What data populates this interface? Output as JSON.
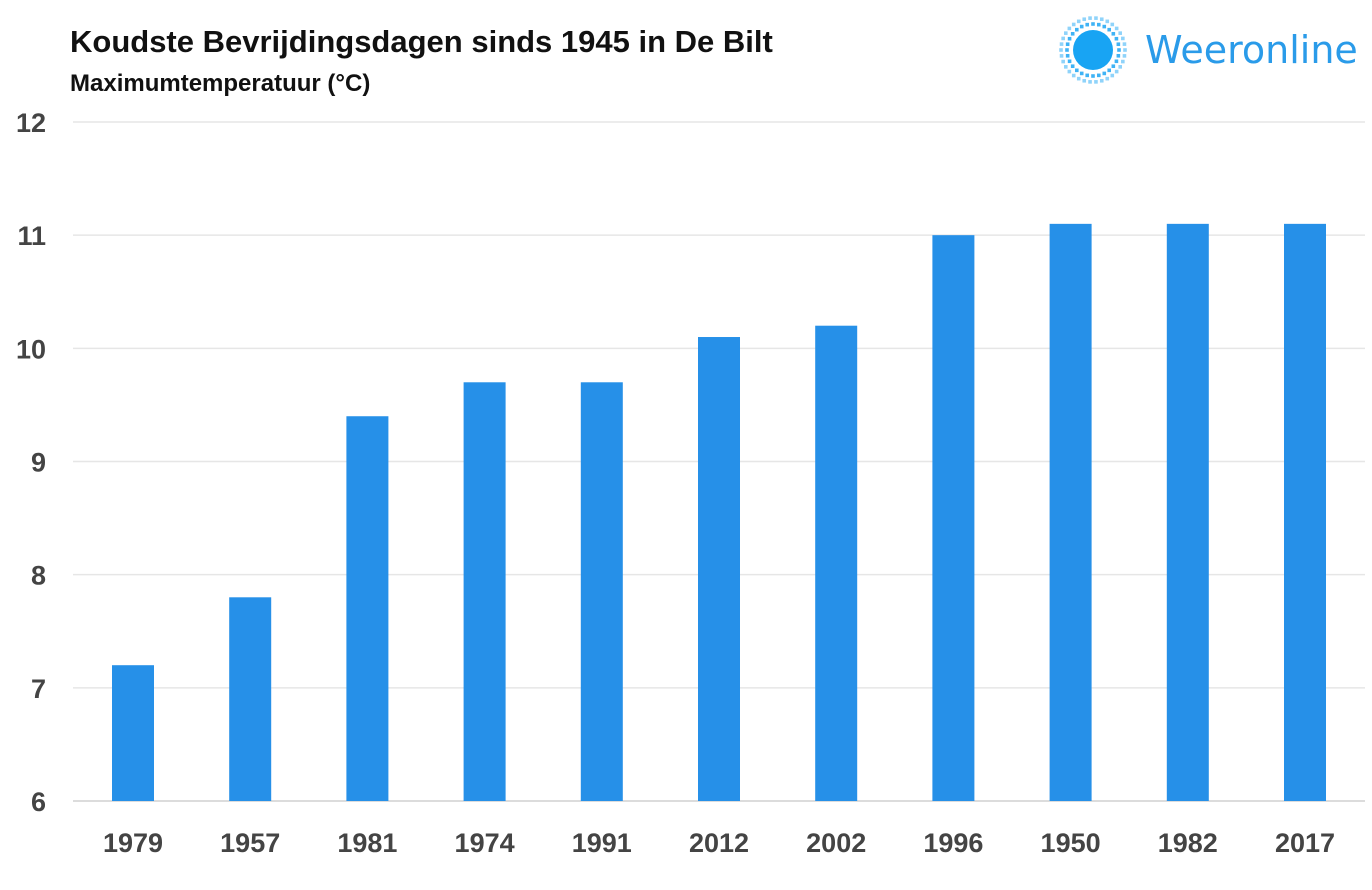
{
  "chart_data": {
    "type": "bar",
    "title": "Koudste Bevrijdingsdagen sinds 1945 in De Bilt",
    "subtitle": "Maximumtemperatuur (°C)",
    "categories": [
      "1979",
      "1957",
      "1981",
      "1974",
      "1991",
      "2012",
      "2002",
      "1996",
      "1950",
      "1982",
      "2017"
    ],
    "values": [
      7.2,
      7.8,
      9.4,
      9.7,
      9.7,
      10.1,
      10.2,
      11.0,
      11.1,
      11.1,
      11.1
    ],
    "ylim": [
      6,
      12
    ],
    "yticks": [
      6,
      7,
      8,
      9,
      10,
      11,
      12
    ],
    "xlabel": "",
    "ylabel": "",
    "grid": true,
    "bar_color": "#2690e8"
  },
  "logo": {
    "text": "Weeronline",
    "color": "#2a9be9"
  }
}
